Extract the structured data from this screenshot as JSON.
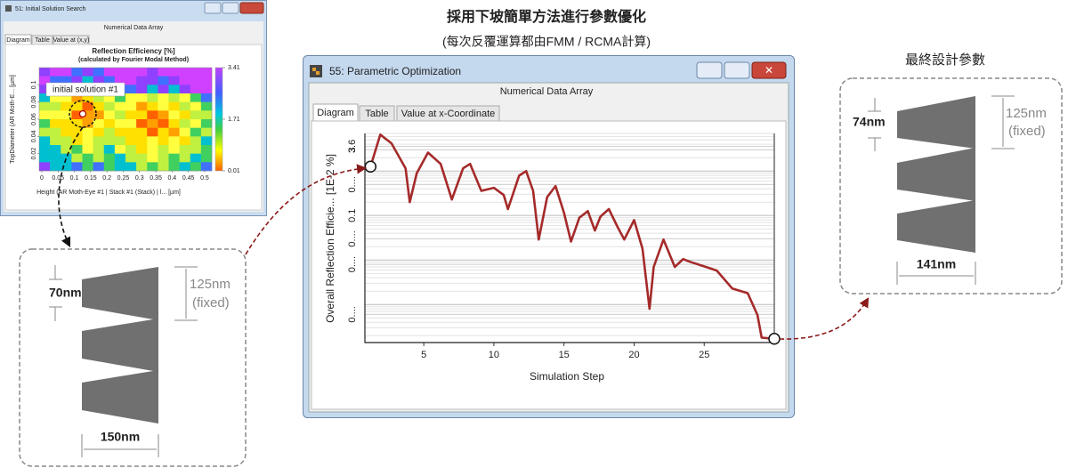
{
  "header": {
    "title": "採用下坡簡單方法進行參數優化",
    "subtitle": "(每次反覆運算都由FMM / RCMA計算)"
  },
  "initial_window": {
    "title": "51: Initial Solution Search",
    "subheader": "Numerical Data Array",
    "tabs": [
      "Diagram",
      "Table",
      "Value at (x,y)"
    ],
    "chart_data": {
      "type": "heatmap",
      "title": "Reflection Efficiency [%]",
      "subtitle": "(calculated by Fourier Modal Method)",
      "x_label": "Height (AR Moth-Eye #1 | Stack #1 (Stack) | l... [µm]",
      "y_label": "TopDiameter (AR Moth-E... [µm]",
      "xlim": [
        -0.008,
        0.522
      ],
      "xticks": [
        0,
        0.05,
        0.1,
        0.15,
        0.2,
        0.25,
        0.3,
        0.35,
        0.4,
        0.45,
        0.5
      ],
      "ylim": [
        0,
        0.12
      ],
      "yticks": [
        0.02,
        0.04,
        0.06,
        0.08,
        0.1
      ],
      "colorbar_lim": [
        0.01,
        3.41
      ],
      "colorbar_ticks": [
        3.41,
        1.71,
        0.01
      ],
      "annotation": "initial solution #1"
    }
  },
  "optimization_window": {
    "title": "55: Parametric Optimization",
    "subheader": "Numerical Data Array",
    "tabs": [
      "Diagram",
      "Table",
      "Value at x-Coordinate"
    ],
    "chart_data": {
      "type": "line",
      "x_label": "Simulation Step",
      "y_label": "Overall Reflection Efficie... [1E-2 %]",
      "log_y": true,
      "grid": true,
      "xlim": [
        0.8,
        30
      ],
      "ylim": [
        0.00014,
        7
      ],
      "xticks": [
        5,
        10,
        15,
        20,
        25
      ],
      "yticks": [
        3.6,
        3,
        {
          "value": 0.5,
          "label": "0...."
        },
        0.1,
        {
          "value": 0.03,
          "label": "0...."
        },
        {
          "value": 0.008,
          "label": "0...."
        },
        {
          "value": 0.0006,
          "label": "0...."
        }
      ],
      "series": [
        {
          "color": "#a52a2a",
          "x": [
            1.2,
            1.9,
            2.7,
            3.7,
            4.0,
            4.5,
            5.3,
            6.2,
            7.0,
            7.8,
            8.3,
            9.1,
            10.0,
            10.7,
            11.0,
            11.8,
            12.3,
            12.8,
            13.2,
            13.8,
            14.4,
            15.0,
            15.5,
            16.1,
            16.7,
            17.2,
            17.6,
            18.2,
            18.8,
            19.3,
            20.0,
            20.6,
            21.1,
            21.4,
            22.1,
            22.9,
            23.5,
            24.0,
            25.0,
            25.9,
            27.0,
            28.1,
            28.8,
            29.1,
            30.0
          ],
          "values": [
            1.26,
            6.6,
            4.2,
            1.15,
            0.2,
            0.9,
            2.6,
            1.45,
            0.23,
            1.15,
            1.45,
            0.36,
            0.42,
            0.29,
            0.14,
            0.79,
            1,
            0.36,
            0.029,
            0.26,
            0.46,
            0.115,
            0.026,
            0.09,
            0.126,
            0.046,
            0.095,
            0.14,
            0.057,
            0.029,
            0.079,
            0.018,
            0.0008,
            0.007,
            0.029,
            0.007,
            0.0105,
            0.0091,
            0.0072,
            0.0058,
            0.0023,
            0.0018,
            0.00058,
            0.00018,
            0.00017
          ]
        }
      ]
    }
  },
  "initial_design": {
    "top_diameter": "70nm",
    "height": "125nm",
    "height_note": "(fixed)",
    "period": "150nm"
  },
  "final_design": {
    "title": "最終設計參數",
    "top_diameter": "74nm",
    "height": "125nm",
    "height_note": "(fixed)",
    "period": "141nm"
  }
}
